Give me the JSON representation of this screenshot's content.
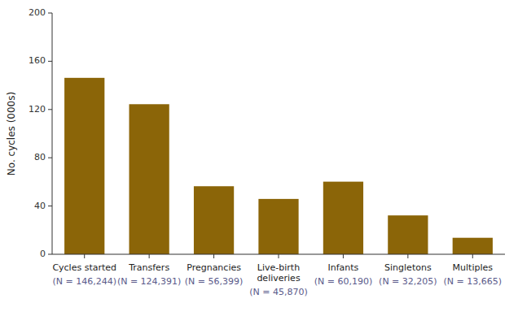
{
  "chart_data": {
    "type": "bar",
    "categories": [
      "Cycles started\n(N = 146,244)",
      "Transfers\n(N = 124,391)",
      "Pregnancies\n(N = 56,399)",
      "Live-birth\ndeliveries\n(N = 45,870)",
      "Infants\n(N = 60,190)",
      "Singletons\n(N = 32,205)",
      "Multiples\n(N = 13,665)"
    ],
    "values": [
      146.244,
      124.391,
      56.399,
      45.87,
      60.19,
      32.205,
      13.665
    ],
    "color": "#8B6508",
    "ylabel": "No. cycles (000s)",
    "ylim": [
      0,
      200
    ],
    "yticks": [
      0,
      40,
      80,
      120,
      160,
      200
    ],
    "grid": false
  }
}
